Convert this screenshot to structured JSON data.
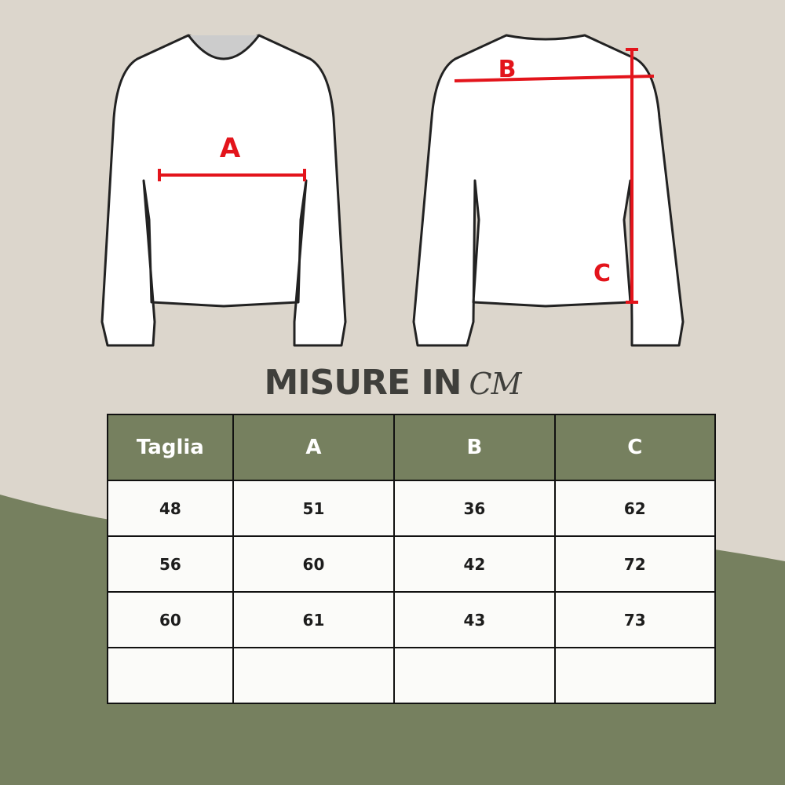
{
  "diagram": {
    "labels": {
      "front": "A",
      "shoulder": "B",
      "length": "C"
    },
    "measure_color": "#e3141b"
  },
  "title": {
    "main": "MISURE IN",
    "unit": "CM"
  },
  "table": {
    "headers": [
      "Taglia",
      "A",
      "B",
      "C"
    ],
    "rows": [
      [
        "48",
        "51",
        "36",
        "62"
      ],
      [
        "56",
        "60",
        "42",
        "72"
      ],
      [
        "60",
        "61",
        "43",
        "73"
      ],
      [
        "",
        "",
        "",
        ""
      ]
    ]
  },
  "colors": {
    "background": "#dcd6cc",
    "accent": "#76805f",
    "text": "#3f3f3b"
  }
}
